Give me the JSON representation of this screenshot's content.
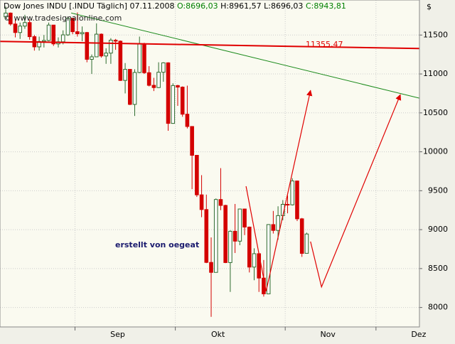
{
  "chart_data": {
    "type": "candlestick",
    "title": "Dow Jones INDU [.INDU  Täglich] 07.11.2008",
    "ohlc_text": [
      "O:8696,03",
      "H:8961,57",
      "L:8696,03",
      "C:8943,81"
    ],
    "watermark": "© www.tradesignalonline.com",
    "currency": "$",
    "annotation": "erstellt von oegeat",
    "up_color": "#2e6b2e",
    "down_color": "#d40000",
    "background": "#fafaf0",
    "grid": true,
    "xlim": [
      -1.2,
      86.6
    ],
    "xticks": [
      {
        "value": 14.5,
        "label": "Sep"
      },
      {
        "value": 35.5,
        "label": "Okt"
      },
      {
        "value": 58.5,
        "label": "Nov"
      },
      {
        "value": 77.5,
        "label": "Dez"
      }
    ],
    "ylim": [
      7750,
      11950
    ],
    "yticks": [
      8000,
      8500,
      9000,
      9500,
      10000,
      10500,
      11000,
      11500
    ],
    "series": {
      "open": [
        11734,
        11782,
        11642,
        11532,
        11615,
        11660,
        11479,
        11348,
        11417,
        11430,
        11628,
        11386,
        11413,
        11502,
        11715,
        11543,
        11516,
        11532,
        11188,
        11220,
        11511,
        11231,
        11268,
        11434,
        11421,
        10917,
        11059,
        10609,
        11019,
        11388,
        11016,
        10854,
        10825,
        11022,
        11143,
        10365,
        10851,
        10831,
        10483,
        10325,
        9955,
        9447,
        9258,
        8579,
        8451,
        9387,
        9311,
        8577,
        8979,
        8852,
        9265,
        9033,
        8519,
        8691,
        8378,
        8175,
        9065,
        8990,
        9180,
        9325,
        9319,
        9625,
        9139,
        8696.03
      ],
      "high": [
        11867,
        11790,
        11700,
        11660,
        11760,
        11700,
        11500,
        11480,
        11500,
        11660,
        11630,
        11470,
        11560,
        11730,
        11720,
        11790,
        11610,
        11540,
        11250,
        11650,
        11520,
        11330,
        11460,
        11450,
        11430,
        11140,
        11060,
        11060,
        11480,
        11400,
        11100,
        10950,
        11150,
        11150,
        11150,
        10880,
        10860,
        10840,
        10850,
        10330,
        9960,
        9700,
        9450,
        8900,
        9400,
        9790,
        9320,
        8990,
        9330,
        9270,
        9270,
        9040,
        8760,
        8690,
        8610,
        9070,
        9240,
        9300,
        9380,
        9440,
        9660,
        9630,
        9150,
        8961.57
      ],
      "low": [
        11700,
        11620,
        11470,
        11450,
        11580,
        11440,
        11300,
        11300,
        11340,
        11420,
        11360,
        11340,
        11380,
        11490,
        11510,
        11480,
        11420,
        11150,
        11000,
        11220,
        11210,
        11130,
        11130,
        11310,
        10910,
        10750,
        10600,
        10460,
        11010,
        11000,
        10840,
        10780,
        10820,
        10900,
        10270,
        10360,
        10590,
        10450,
        10300,
        9520,
        9420,
        9160,
        8570,
        7880,
        8450,
        9250,
        8570,
        8200,
        8700,
        8800,
        8930,
        8450,
        8350,
        8200,
        8140,
        8170,
        8950,
        8870,
        9120,
        9210,
        9310,
        9110,
        8650,
        8696.03
      ],
      "close": [
        11782,
        11642,
        11532,
        11615,
        11660,
        11479,
        11348,
        11417,
        11430,
        11628,
        11386,
        11413,
        11502,
        11715,
        11543,
        11516,
        11532,
        11188,
        11220,
        11511,
        11231,
        11268,
        11434,
        11421,
        10917,
        11059,
        10609,
        11019,
        11388,
        11016,
        10854,
        10825,
        11022,
        11143,
        10365,
        10851,
        10831,
        10483,
        10325,
        9955,
        9447,
        9258,
        8579,
        8451,
        9387,
        9311,
        8577,
        8979,
        8852,
        9265,
        9033,
        8519,
        8691,
        8378,
        8175,
        9065,
        8990,
        9180,
        9325,
        9319,
        9625,
        9139,
        8695,
        8943.81
      ]
    },
    "lines": [
      {
        "color": "#1a8a1a",
        "x": [
          13.7,
          86.6
        ],
        "y": [
          11783,
          10689
        ]
      },
      {
        "color": "#e00000",
        "x": [
          -1.2,
          86.6
        ],
        "y": [
          11418,
          11327
        ],
        "label": {
          "value": 11355.47,
          "label": "11355,47"
        }
      },
      {
        "color": "#e00000",
        "x": [
          50.3,
          54.5,
          63.8
        ],
        "y": [
          9558,
          8209,
          10789
        ],
        "arrow": true
      },
      {
        "color": "#e00000",
        "x": [
          63.8,
          66.1,
          82.6
        ],
        "y": [
          8847,
          8264,
          10734
        ],
        "arrow": true
      }
    ]
  }
}
